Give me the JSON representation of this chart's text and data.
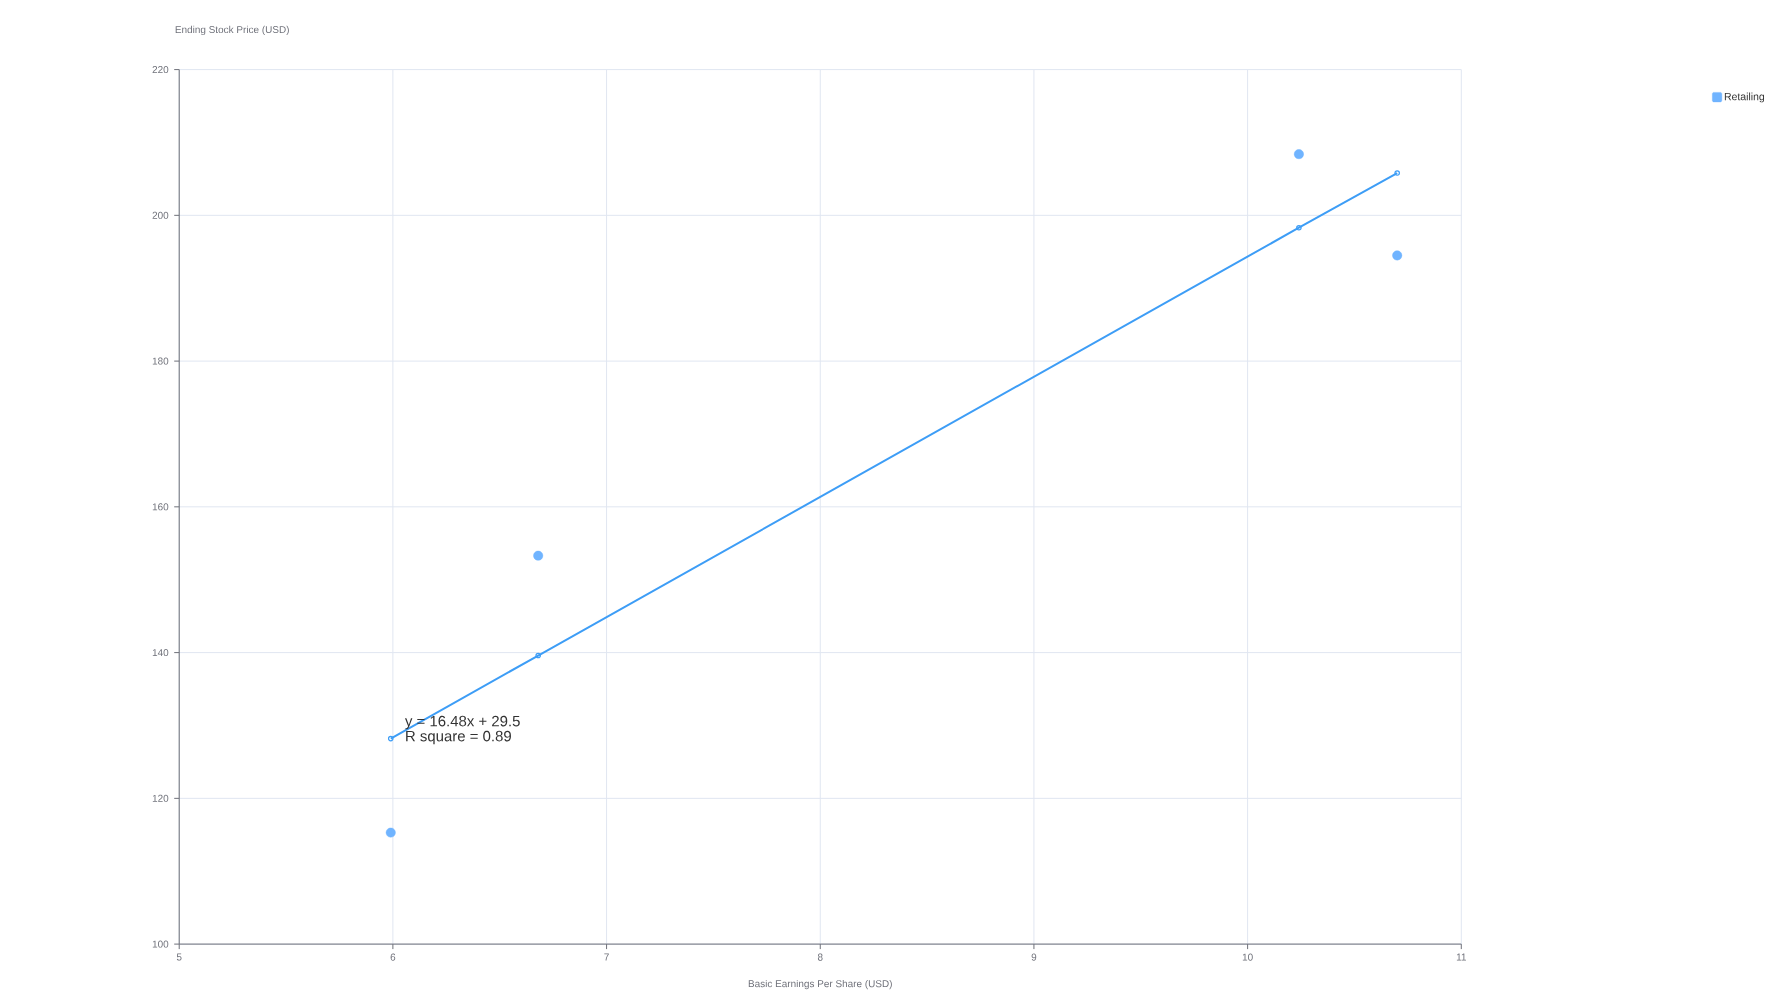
{
  "chart_data": {
    "type": "scatter",
    "xlabel": "Basic Earnings Per Share (USD)",
    "ylabel": "Ending Stock Price (USD)",
    "xlim": [
      5,
      11
    ],
    "xticks": [
      5,
      6,
      7,
      8,
      9,
      10,
      11
    ],
    "ylim": [
      100,
      220
    ],
    "yticks": [
      100,
      120,
      140,
      160,
      180,
      200,
      220
    ],
    "grid": true,
    "legend": "top right",
    "series": [
      {
        "name": "Retailing",
        "color": "#70b4ff",
        "marker": "circle",
        "x": [
          5.99,
          6.68,
          10.24,
          10.7
        ],
        "values": [
          115.3,
          153.3,
          208.4,
          194.5
        ]
      },
      {
        "type": "line",
        "color": "#3d9df6",
        "marker": "circle",
        "x": [
          5.99,
          6.68,
          10.24,
          10.7
        ],
        "values": [
          128.2,
          139.6,
          198.3,
          205.8
        ]
      }
    ],
    "annotations": [
      "y = 16.48x + 29.5",
      "R square = 0.89"
    ]
  }
}
